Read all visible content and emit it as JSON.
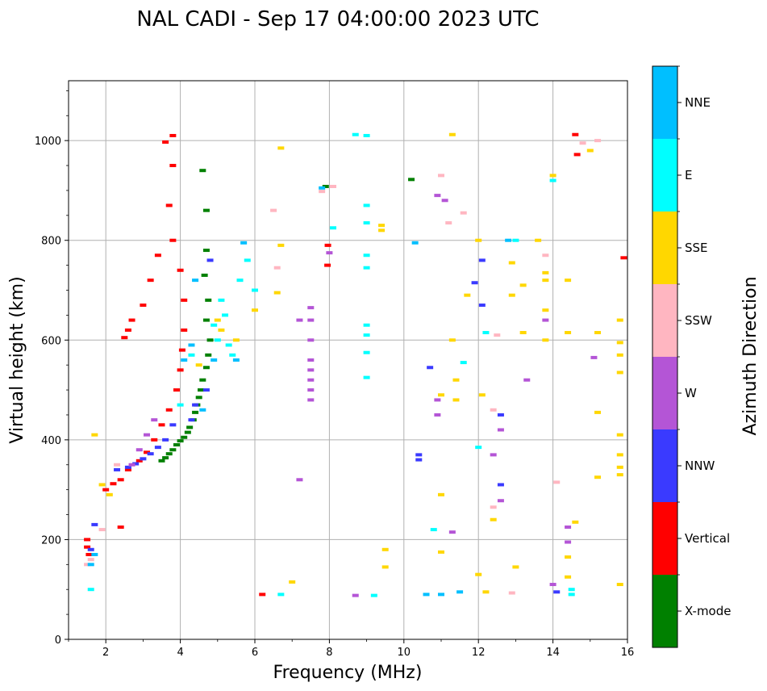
{
  "chart_data": {
    "type": "scatter",
    "title": "NAL CADI - Sep 17 04:00:00 2023 UTC",
    "xlabel": "Frequency (MHz)",
    "ylabel": "Virtual height (km)",
    "xlim": [
      1,
      16
    ],
    "ylim": [
      0,
      1120
    ],
    "grid": true,
    "x_ticks": [
      2,
      4,
      6,
      8,
      10,
      12,
      14,
      16
    ],
    "y_ticks": [
      0,
      200,
      400,
      600,
      800,
      1000
    ],
    "colorbar": {
      "label": "Azimuth Direction",
      "categories": [
        {
          "name": "X-mode",
          "color": "#008000"
        },
        {
          "name": "Vertical",
          "color": "#ff0000"
        },
        {
          "name": "NNW",
          "color": "#3a3aff"
        },
        {
          "name": "W",
          "color": "#b455d6"
        },
        {
          "name": "SSW",
          "color": "#ffb6c1"
        },
        {
          "name": "SSE",
          "color": "#ffd700"
        },
        {
          "name": "E",
          "color": "#00ffff"
        },
        {
          "name": "NNE",
          "color": "#00bfff"
        }
      ]
    },
    "series": [
      {
        "name": "X-mode",
        "points": [
          [
            3.5,
            358
          ],
          [
            3.6,
            364
          ],
          [
            3.7,
            372
          ],
          [
            3.8,
            380
          ],
          [
            3.9,
            390
          ],
          [
            4.0,
            398
          ],
          [
            4.1,
            405
          ],
          [
            4.2,
            415
          ],
          [
            4.25,
            425
          ],
          [
            4.35,
            440
          ],
          [
            4.4,
            455
          ],
          [
            4.45,
            470
          ],
          [
            4.5,
            485
          ],
          [
            4.55,
            500
          ],
          [
            4.6,
            520
          ],
          [
            4.7,
            545
          ],
          [
            4.75,
            570
          ],
          [
            4.8,
            600
          ],
          [
            4.7,
            640
          ],
          [
            4.75,
            680
          ],
          [
            4.65,
            730
          ],
          [
            4.7,
            780
          ],
          [
            4.7,
            860
          ],
          [
            4.6,
            940
          ],
          [
            10.2,
            922
          ],
          [
            7.9,
            908
          ]
        ]
      },
      {
        "name": "Vertical",
        "points": [
          [
            1.5,
            200
          ],
          [
            1.5,
            185
          ],
          [
            1.55,
            170
          ],
          [
            2.0,
            300
          ],
          [
            2.2,
            312
          ],
          [
            2.4,
            320
          ],
          [
            2.6,
            340
          ],
          [
            2.9,
            358
          ],
          [
            3.1,
            375
          ],
          [
            3.3,
            400
          ],
          [
            3.5,
            430
          ],
          [
            3.7,
            460
          ],
          [
            3.9,
            500
          ],
          [
            4.0,
            540
          ],
          [
            4.05,
            580
          ],
          [
            4.1,
            620
          ],
          [
            4.1,
            680
          ],
          [
            4.0,
            740
          ],
          [
            3.8,
            800
          ],
          [
            3.7,
            870
          ],
          [
            3.8,
            950
          ],
          [
            3.8,
            1010
          ],
          [
            3.6,
            997
          ],
          [
            3.4,
            770
          ],
          [
            3.2,
            720
          ],
          [
            3.0,
            670
          ],
          [
            2.7,
            640
          ],
          [
            2.6,
            620
          ],
          [
            2.5,
            605
          ],
          [
            2.4,
            225
          ],
          [
            7.96,
            790
          ],
          [
            7.95,
            750
          ],
          [
            14.6,
            1012
          ],
          [
            14.65,
            972
          ],
          [
            15.9,
            765
          ],
          [
            6.2,
            90
          ]
        ]
      },
      {
        "name": "NNW",
        "points": [
          [
            1.6,
            180
          ],
          [
            1.7,
            230
          ],
          [
            2.3,
            340
          ],
          [
            2.6,
            345
          ],
          [
            2.8,
            352
          ],
          [
            3.0,
            362
          ],
          [
            3.2,
            372
          ],
          [
            3.4,
            385
          ],
          [
            3.6,
            400
          ],
          [
            3.8,
            430
          ],
          [
            4.3,
            440
          ],
          [
            4.4,
            470
          ],
          [
            4.7,
            500
          ],
          [
            4.8,
            760
          ],
          [
            10.4,
            370
          ],
          [
            10.4,
            360
          ],
          [
            11.9,
            715
          ],
          [
            12.1,
            670
          ],
          [
            12.1,
            760
          ],
          [
            12.6,
            310
          ],
          [
            12.6,
            450
          ],
          [
            14.1,
            95
          ],
          [
            10.7,
            545
          ]
        ]
      },
      {
        "name": "W",
        "points": [
          [
            2.7,
            350
          ],
          [
            2.9,
            380
          ],
          [
            3.1,
            410
          ],
          [
            3.3,
            440
          ],
          [
            7.5,
            665
          ],
          [
            7.5,
            640
          ],
          [
            7.5,
            600
          ],
          [
            7.5,
            560
          ],
          [
            7.5,
            540
          ],
          [
            7.5,
            520
          ],
          [
            7.5,
            500
          ],
          [
            7.5,
            480
          ],
          [
            7.2,
            640
          ],
          [
            7.2,
            320
          ],
          [
            8.0,
            775
          ],
          [
            10.9,
            890
          ],
          [
            10.9,
            450
          ],
          [
            10.9,
            480
          ],
          [
            11.1,
            880
          ],
          [
            12.4,
            370
          ],
          [
            12.6,
            420
          ],
          [
            12.6,
            278
          ],
          [
            13.8,
            640
          ],
          [
            14.0,
            110
          ],
          [
            14.4,
            225
          ],
          [
            14.4,
            195
          ],
          [
            15.1,
            565
          ],
          [
            13.3,
            520
          ],
          [
            8.7,
            88
          ],
          [
            11.3,
            215
          ]
        ]
      },
      {
        "name": "SSW",
        "points": [
          [
            1.5,
            150
          ],
          [
            1.6,
            160
          ],
          [
            1.9,
            220
          ],
          [
            2.3,
            350
          ],
          [
            6.5,
            860
          ],
          [
            6.6,
            745
          ],
          [
            11.0,
            930
          ],
          [
            11.2,
            835
          ],
          [
            12.5,
            610
          ],
          [
            12.4,
            460
          ],
          [
            12.4,
            265
          ],
          [
            12.9,
            93
          ],
          [
            13.8,
            770
          ],
          [
            14.1,
            315
          ],
          [
            15.2,
            1000
          ],
          [
            14.8,
            995
          ],
          [
            7.8,
            898
          ],
          [
            8.1,
            908
          ],
          [
            11.6,
            855
          ]
        ]
      },
      {
        "name": "SSE",
        "points": [
          [
            1.7,
            410
          ],
          [
            1.9,
            310
          ],
          [
            2.1,
            290
          ],
          [
            4.5,
            550
          ],
          [
            5.0,
            640
          ],
          [
            5.1,
            620
          ],
          [
            5.5,
            600
          ],
          [
            6.0,
            660
          ],
          [
            6.7,
            985
          ],
          [
            6.7,
            790
          ],
          [
            6.6,
            695
          ],
          [
            7.0,
            115
          ],
          [
            9.4,
            830
          ],
          [
            9.4,
            820
          ],
          [
            9.5,
            180
          ],
          [
            9.5,
            145
          ],
          [
            11.0,
            490
          ],
          [
            11.0,
            290
          ],
          [
            11.0,
            175
          ],
          [
            11.3,
            1012
          ],
          [
            11.4,
            520
          ],
          [
            11.4,
            480
          ],
          [
            11.3,
            600
          ],
          [
            11.7,
            690
          ],
          [
            12.0,
            800
          ],
          [
            12.1,
            490
          ],
          [
            12.0,
            130
          ],
          [
            12.2,
            95
          ],
          [
            12.4,
            240
          ],
          [
            12.9,
            755
          ],
          [
            12.9,
            690
          ],
          [
            13.0,
            145
          ],
          [
            13.2,
            615
          ],
          [
            13.2,
            710
          ],
          [
            13.6,
            800
          ],
          [
            13.8,
            735
          ],
          [
            13.8,
            720
          ],
          [
            13.8,
            660
          ],
          [
            13.8,
            600
          ],
          [
            14.0,
            930
          ],
          [
            14.4,
            720
          ],
          [
            14.4,
            615
          ],
          [
            14.4,
            165
          ],
          [
            14.4,
            125
          ],
          [
            14.6,
            235
          ],
          [
            15.0,
            980
          ],
          [
            15.2,
            615
          ],
          [
            15.2,
            455
          ],
          [
            15.2,
            325
          ],
          [
            15.8,
            640
          ],
          [
            15.8,
            595
          ],
          [
            15.8,
            570
          ],
          [
            15.8,
            535
          ],
          [
            15.8,
            410
          ],
          [
            15.8,
            370
          ],
          [
            15.8,
            345
          ],
          [
            15.8,
            330
          ],
          [
            15.8,
            110
          ]
        ]
      },
      {
        "name": "E",
        "points": [
          [
            1.6,
            100
          ],
          [
            4.0,
            470
          ],
          [
            4.3,
            570
          ],
          [
            4.9,
            630
          ],
          [
            5.0,
            600
          ],
          [
            5.1,
            680
          ],
          [
            5.2,
            650
          ],
          [
            5.3,
            590
          ],
          [
            5.4,
            570
          ],
          [
            5.6,
            720
          ],
          [
            5.8,
            760
          ],
          [
            6.0,
            700
          ],
          [
            8.1,
            825
          ],
          [
            8.7,
            1012
          ],
          [
            9.0,
            1010
          ],
          [
            9.0,
            870
          ],
          [
            9.0,
            835
          ],
          [
            9.0,
            770
          ],
          [
            9.0,
            745
          ],
          [
            9.0,
            630
          ],
          [
            9.0,
            610
          ],
          [
            9.0,
            575
          ],
          [
            9.0,
            525
          ],
          [
            10.8,
            220
          ],
          [
            11.6,
            555
          ],
          [
            12.0,
            385
          ],
          [
            12.2,
            615
          ],
          [
            13.0,
            800
          ],
          [
            14.0,
            920
          ],
          [
            14.5,
            100
          ],
          [
            14.5,
            90
          ],
          [
            6.7,
            90
          ],
          [
            9.2,
            88
          ]
        ]
      },
      {
        "name": "NNE",
        "points": [
          [
            1.6,
            150
          ],
          [
            1.7,
            170
          ],
          [
            4.1,
            560
          ],
          [
            4.3,
            590
          ],
          [
            4.4,
            720
          ],
          [
            4.6,
            460
          ],
          [
            4.9,
            560
          ],
          [
            5.5,
            560
          ],
          [
            5.7,
            795
          ],
          [
            7.8,
            905
          ],
          [
            10.3,
            795
          ],
          [
            12.8,
            800
          ],
          [
            10.6,
            90
          ],
          [
            11.0,
            90
          ],
          [
            11.5,
            95
          ]
        ]
      }
    ]
  }
}
